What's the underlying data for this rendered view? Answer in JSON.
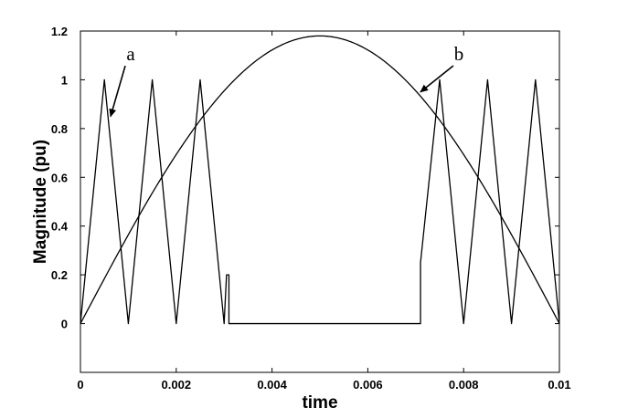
{
  "chart_data": {
    "type": "line",
    "title": "",
    "xlabel": "time",
    "ylabel": "Magnitude (pu)",
    "xlim": [
      0,
      0.01
    ],
    "ylim": [
      -0.2,
      1.2
    ],
    "xticks": [
      0,
      0.002,
      0.004,
      0.006,
      0.008,
      0.01
    ],
    "xtick_labels": [
      "0",
      "0.002",
      "0.004",
      "0.006",
      "0.008",
      "0.01"
    ],
    "yticks": [
      0,
      0.2,
      0.4,
      0.6,
      0.8,
      1,
      1.2
    ],
    "ytick_labels": [
      "0",
      "0.2",
      "0.4",
      "0.6",
      "0.8",
      "1",
      "1.2"
    ],
    "grid": false,
    "series": [
      {
        "name": "a",
        "x": [
          0,
          0.0005,
          0.001,
          0.0015,
          0.002,
          0.0025,
          0.003,
          0.00305,
          0.0031,
          0.0031,
          0.0071,
          0.0071,
          0.0075,
          0.008,
          0.0085,
          0.009,
          0.0095,
          0.01
        ],
        "y": [
          0,
          1,
          0,
          1,
          0,
          1,
          0,
          0.2,
          0.2,
          0,
          0,
          0.25,
          1,
          0,
          1,
          0,
          1,
          0
        ]
      },
      {
        "name": "b",
        "function": "1.18*sin(pi*t/0.01)",
        "x": [
          0,
          0.0005,
          0.001,
          0.0015,
          0.002,
          0.0025,
          0.003,
          0.0035,
          0.004,
          0.0045,
          0.005,
          0.0055,
          0.006,
          0.0065,
          0.007,
          0.0075,
          0.008,
          0.0085,
          0.009,
          0.0095,
          0.01
        ],
        "y": [
          0,
          0.185,
          0.365,
          0.536,
          0.694,
          0.834,
          0.955,
          1.051,
          1.122,
          1.165,
          1.18,
          1.165,
          1.122,
          1.051,
          0.955,
          0.834,
          0.694,
          0.536,
          0.365,
          0.185,
          0
        ]
      }
    ],
    "annotations": [
      {
        "text": "a",
        "x": 0.00105,
        "y": 1.08,
        "arrow_to": [
          0.00063,
          0.85
        ]
      },
      {
        "text": "b",
        "x": 0.0079,
        "y": 1.08,
        "arrow_to": [
          0.0071,
          0.95
        ]
      }
    ]
  }
}
